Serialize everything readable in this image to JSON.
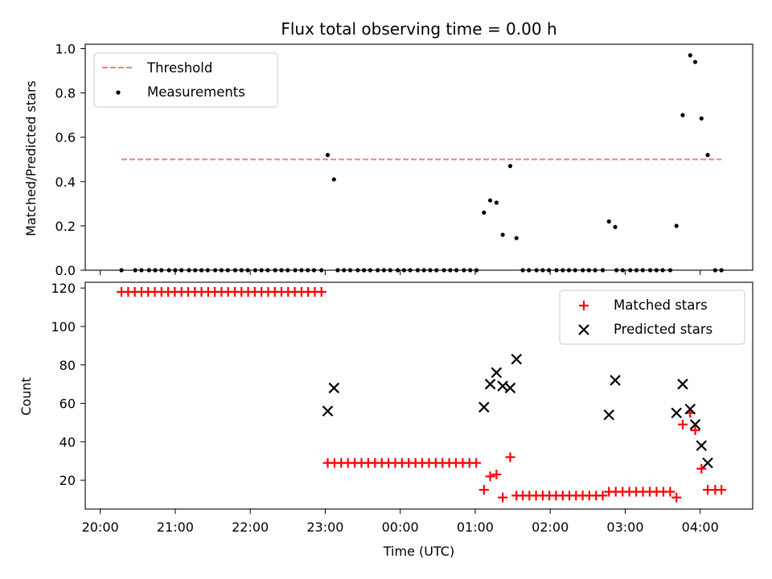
{
  "title": "Flux total observing time = 0.00 h",
  "colors": {
    "threshold": "#ff7f7f",
    "measurement": "#000000",
    "matched": "#ff0000",
    "predicted": "#000000"
  },
  "chart_data": [
    {
      "type": "scatter",
      "ylabel": "Matched/Predicted stars",
      "ylim": [
        0,
        1.02
      ],
      "yticks": [
        0.0,
        0.2,
        0.4,
        0.6,
        0.8,
        1.0
      ],
      "ytick_labels": [
        "0.0",
        "0.2",
        "0.4",
        "0.6",
        "0.8",
        "1.0"
      ],
      "xlim_hours": [
        19.8,
        28.7
      ],
      "legend": {
        "position": "top-left",
        "entries": [
          "Threshold",
          "Measurements"
        ]
      },
      "threshold": {
        "name": "Threshold",
        "value": 0.5,
        "x_range": [
          "20:17",
          "04:17"
        ]
      },
      "zero_points": {
        "times": [
          "20:17",
          "20:28",
          "20:33",
          "20:39",
          "20:44",
          "20:49",
          "20:55",
          "21:00",
          "21:05",
          "21:11",
          "21:16",
          "21:21",
          "21:26",
          "21:32",
          "21:37",
          "21:42",
          "21:48",
          "21:53",
          "21:58",
          "22:04",
          "22:09",
          "22:14",
          "22:20",
          "22:25",
          "22:30",
          "22:36",
          "22:41",
          "22:46",
          "22:51",
          "22:57",
          "23:10",
          "23:15",
          "23:20",
          "23:26",
          "23:31",
          "23:36",
          "23:42",
          "23:47",
          "23:52",
          "23:58",
          "00:03",
          "00:08",
          "00:14",
          "00:19",
          "00:24",
          "00:29",
          "00:35",
          "00:40",
          "00:45",
          "00:51",
          "00:56",
          "01:01",
          "01:38",
          "01:43",
          "01:49",
          "01:54",
          "01:59",
          "02:05",
          "02:10",
          "02:15",
          "02:20",
          "02:26",
          "02:31",
          "02:36",
          "02:42",
          "02:53",
          "02:58",
          "03:04",
          "03:09",
          "03:14",
          "03:20",
          "03:25",
          "03:30",
          "03:36",
          "04:12",
          "04:17"
        ],
        "value": 0
      },
      "series": [
        {
          "name": "Measurements",
          "x": [
            "23:02",
            "23:07",
            "01:07",
            "01:12",
            "01:17",
            "01:22",
            "01:28",
            "01:33",
            "02:47",
            "02:52",
            "03:41",
            "03:46",
            "03:52",
            "03:56",
            "04:01",
            "04:06"
          ],
          "y": [
            0.52,
            0.41,
            0.26,
            0.315,
            0.305,
            0.16,
            0.47,
            0.145,
            0.22,
            0.195,
            0.2,
            0.7,
            0.97,
            0.94,
            0.685,
            0.52
          ]
        }
      ]
    },
    {
      "type": "scatter",
      "xlabel": "Time (UTC)",
      "ylabel": "Count",
      "ylim": [
        5,
        123
      ],
      "yticks": [
        20,
        40,
        60,
        80,
        100,
        120
      ],
      "ytick_labels": [
        "20",
        "40",
        "60",
        "80",
        "100",
        "120"
      ],
      "xlim_hours": [
        19.8,
        28.7
      ],
      "xticks": [
        "20:00",
        "21:00",
        "22:00",
        "23:00",
        "00:00",
        "01:00",
        "02:00",
        "03:00",
        "04:00"
      ],
      "legend": {
        "position": "top-right",
        "entries": [
          "Matched stars",
          "Predicted stars"
        ]
      },
      "series": [
        {
          "name": "Matched stars",
          "groups": [
            {
              "from": "20:17",
              "to": "22:57",
              "step_min": 5.333,
              "value": 118
            },
            {
              "from": "23:02",
              "to": "01:01",
              "step_min": 5.4,
              "value": 29
            },
            {
              "from": "01:38",
              "to": "02:42",
              "step_min": 5.333,
              "value": 12
            },
            {
              "from": "02:47",
              "to": "03:36",
              "step_min": 5.44,
              "value": 14
            },
            {
              "from": "04:12",
              "to": "04:17",
              "step_min": 5,
              "value": 15
            }
          ],
          "x": [
            "01:07",
            "01:12",
            "01:17",
            "01:22",
            "01:28",
            "01:33",
            "03:41",
            "03:46",
            "03:52",
            "03:56",
            "04:01",
            "04:06"
          ],
          "y": [
            15,
            22,
            23,
            11,
            32,
            12,
            11,
            49,
            55,
            46,
            26,
            15
          ]
        },
        {
          "name": "Predicted stars",
          "x": [
            "23:02",
            "23:07",
            "01:07",
            "01:12",
            "01:17",
            "01:22",
            "01:28",
            "01:33",
            "02:47",
            "02:52",
            "03:41",
            "03:46",
            "03:52",
            "03:56",
            "04:01",
            "04:06"
          ],
          "y": [
            56,
            68,
            58,
            70,
            76,
            69,
            68,
            83,
            54,
            72,
            55,
            70,
            57,
            49,
            38,
            29
          ]
        }
      ]
    }
  ]
}
